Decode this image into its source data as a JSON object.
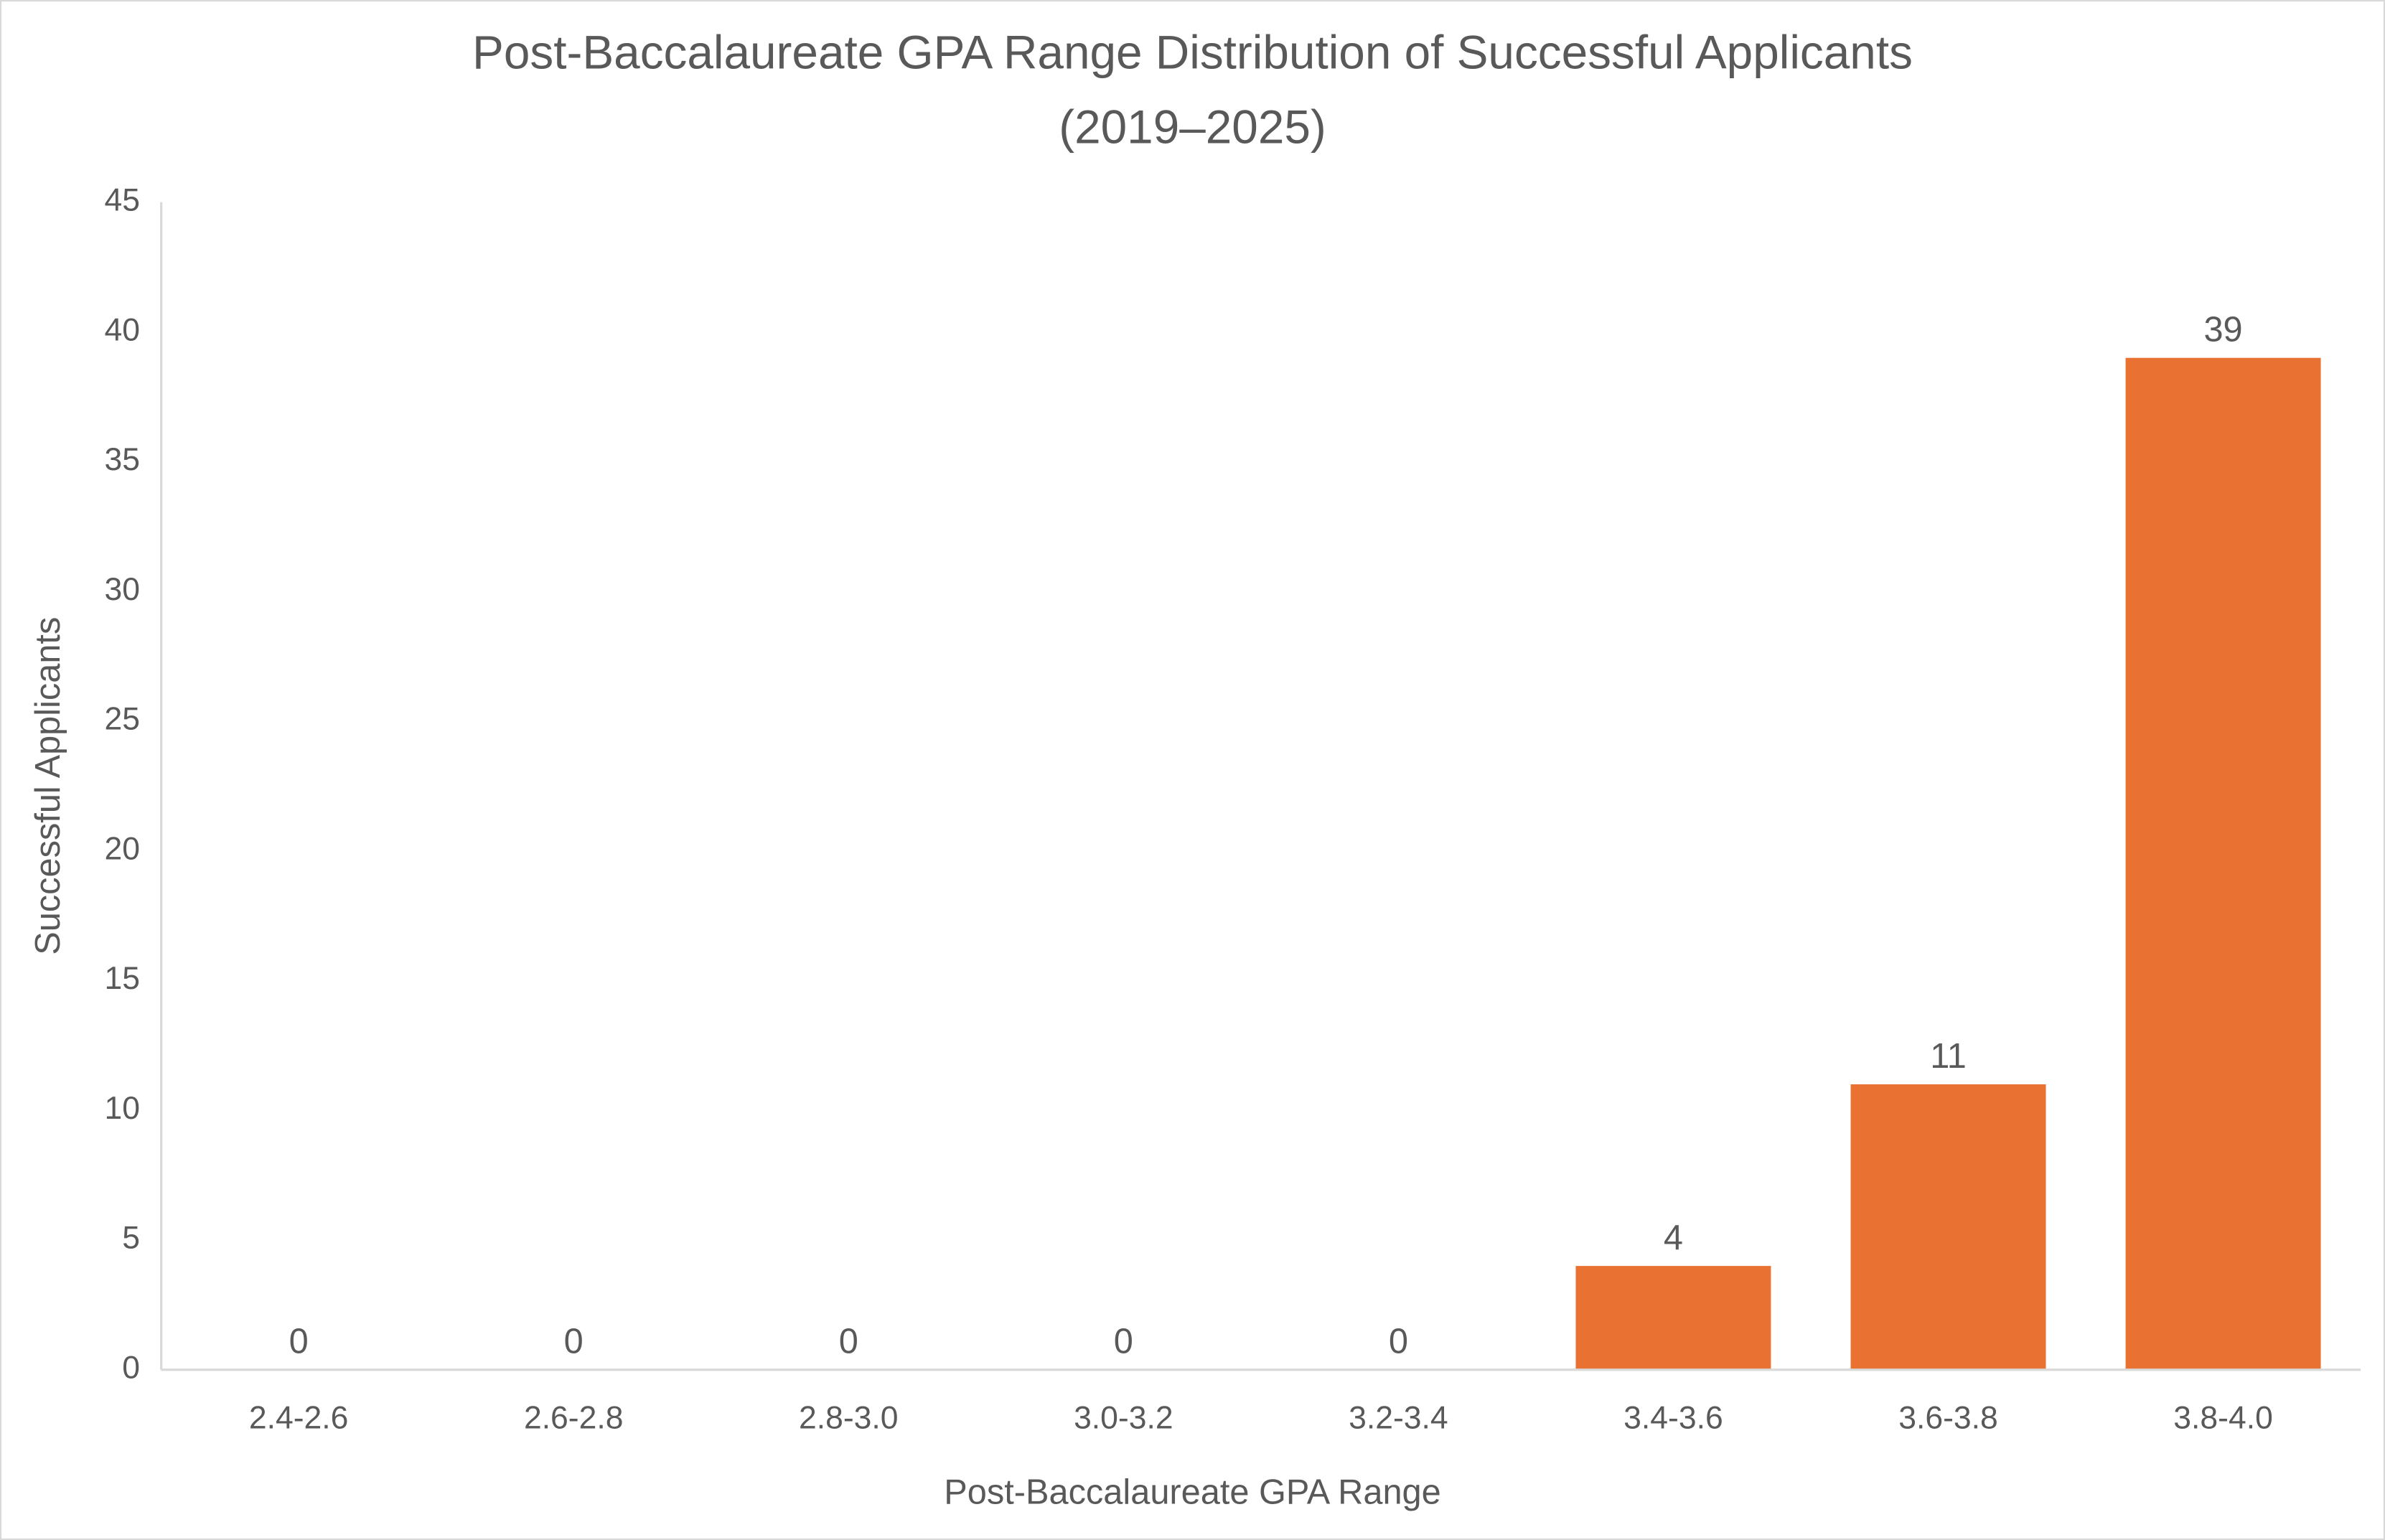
{
  "chart_data": {
    "type": "bar",
    "title": "Post-Baccalaureate GPA Range Distribution of Successful Applicants",
    "subtitle": "(2019–2025)",
    "x_label": "Post-Baccalaureate GPA Range",
    "y_label": "Successful Applicants",
    "categories": [
      "2.4-2.6",
      "2.6-2.8",
      "2.8-3.0",
      "3.0-3.2",
      "3.2-3.4",
      "3.4-3.6",
      "3.6-3.8",
      "3.8-4.0"
    ],
    "values": [
      0,
      0,
      0,
      0,
      0,
      4,
      11,
      39
    ],
    "color": "#e97132",
    "ylim": [
      0,
      45
    ],
    "yticks": [
      0,
      5,
      10,
      15,
      20,
      25,
      30,
      35,
      40,
      45
    ],
    "grid": false,
    "data_labels": true
  }
}
